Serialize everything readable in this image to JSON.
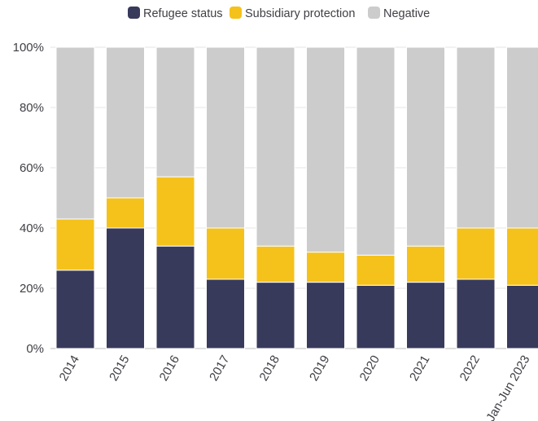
{
  "chart_data": {
    "type": "bar",
    "stacked": true,
    "categories": [
      "2014",
      "2015",
      "2016",
      "2017",
      "2018",
      "2019",
      "2020",
      "2021",
      "2022",
      "Jan-Jun 2023"
    ],
    "series": [
      {
        "name": "Refugee status",
        "color": "#383a5c",
        "values": [
          26,
          40,
          34,
          23,
          22,
          22,
          21,
          22,
          23,
          21
        ]
      },
      {
        "name": "Subsidiary protection",
        "color": "#f5c21b",
        "values": [
          17,
          10,
          23,
          17,
          12,
          10,
          10,
          12,
          17,
          19
        ]
      },
      {
        "name": "Negative",
        "color": "#cccccc",
        "values": [
          57,
          50,
          43,
          60,
          66,
          68,
          69,
          66,
          60,
          60
        ]
      }
    ],
    "y_ticks": [
      "0%",
      "20%",
      "40%",
      "60%",
      "80%",
      "100%"
    ],
    "ylim": [
      0,
      100
    ],
    "title": "",
    "xlabel": "",
    "ylabel": "",
    "legend_position": "top-center",
    "grid": "horizontal"
  }
}
